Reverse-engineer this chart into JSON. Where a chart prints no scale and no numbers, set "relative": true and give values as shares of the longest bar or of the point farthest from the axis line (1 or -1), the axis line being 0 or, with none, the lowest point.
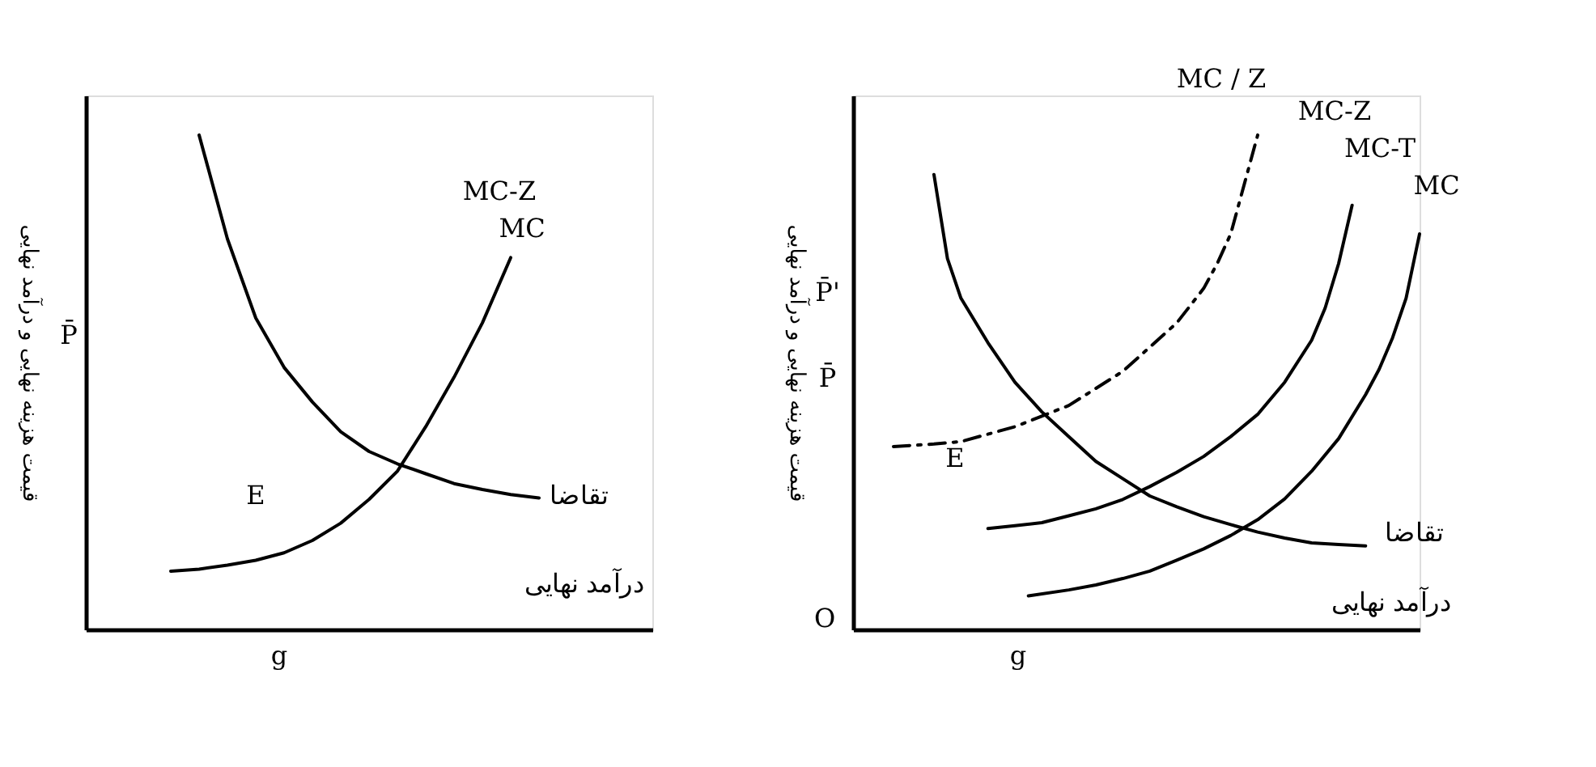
{
  "chart_data": [
    {
      "type": "line",
      "relative": true,
      "ylabel": "قیمت هزینه نهایی و درآمد نهایی",
      "xlabel": "g",
      "line_style": "solid",
      "marker": "none",
      "categories": [
        null,
        null,
        null,
        null,
        null,
        null,
        null,
        null,
        null,
        null,
        null,
        null,
        null,
        null,
        null,
        null,
        null,
        null,
        null,
        null,
        null
      ],
      "series": [
        {
          "color": "#000000",
          "values": [
            null,
            null,
            null,
            null,
            1.0,
            0.79,
            0.63,
            0.53,
            0.46,
            0.4,
            0.36,
            0.335,
            0.315,
            0.295,
            0.283,
            0.273,
            0.266,
            null,
            null,
            null,
            null
          ]
        },
        {
          "color": "#000000",
          "values": [
            null,
            null,
            null,
            0.118,
            0.122,
            0.13,
            0.14,
            0.155,
            0.18,
            0.215,
            0.263,
            0.32,
            0.41,
            0.51,
            0.62,
            0.752,
            null,
            null,
            null,
            null,
            null
          ]
        }
      ],
      "annotations": [
        "MC-Z",
        "MC",
        "E",
        "تقاضا",
        "درآمد نهایی",
        "P̄"
      ]
    },
    {
      "type": "line",
      "relative": true,
      "ylabel": "قیمت هزینه نهایی و درآمد نهایی",
      "xlabel": "g",
      "line_style": "solid",
      "marker": "none",
      "categories": [
        null,
        null,
        null,
        null,
        null,
        null,
        null,
        null,
        null,
        null,
        null,
        null,
        null,
        null,
        null,
        null,
        null,
        null,
        null,
        null,
        null,
        null,
        null,
        null,
        null,
        null,
        null,
        null,
        null,
        null,
        null,
        null,
        null,
        null,
        null,
        null,
        null,
        null,
        null,
        null,
        null,
        null,
        null
      ],
      "series": [
        {
          "color": "#000000",
          "values": [
            null,
            null,
            null,
            null,
            null,
            null,
            0.92,
            0.75,
            0.67,
            null,
            0.58,
            null,
            0.5,
            null,
            0.44,
            null,
            0.39,
            null,
            0.34,
            null,
            0.305,
            null,
            0.27,
            null,
            0.248,
            null,
            0.228,
            null,
            0.212,
            null,
            0.197,
            null,
            0.185,
            null,
            0.175,
            null,
            0.172,
            null,
            0.169,
            null,
            null,
            null,
            null
          ]
        },
        {
          "color": "#000000",
          "values": [
            null,
            null,
            null,
            null,
            null,
            null,
            null,
            null,
            null,
            null,
            0.204,
            null,
            0.21,
            null,
            0.216,
            null,
            0.23,
            null,
            0.244,
            null,
            0.263,
            null,
            0.289,
            null,
            0.318,
            null,
            0.35,
            null,
            0.39,
            null,
            0.435,
            null,
            0.5,
            null,
            0.585,
            0.65,
            0.74,
            0.858,
            null,
            null,
            null,
            null,
            null
          ]
        },
        {
          "color": "#000000",
          "values": [
            null,
            null,
            null,
            null,
            null,
            null,
            null,
            null,
            null,
            null,
            null,
            null,
            null,
            0.068,
            null,
            null,
            0.08,
            null,
            0.09,
            null,
            0.103,
            null,
            0.118,
            null,
            0.14,
            null,
            0.163,
            null,
            0.19,
            null,
            0.222,
            null,
            0.264,
            null,
            0.32,
            null,
            0.386,
            null,
            0.475,
            0.526,
            0.59,
            0.67,
            0.8
          ]
        },
        {
          "color": "#000000",
          "line_style": "dashed",
          "values": [
            null,
            null,
            null,
            0.37,
            null,
            null,
            0.375,
            null,
            0.38,
            null,
            null,
            null,
            0.41,
            null,
            null,
            null,
            0.453,
            null,
            null,
            null,
            0.522,
            null,
            null,
            null,
            0.62,
            null,
            0.69,
            0.74,
            0.8,
            0.9,
            1.0,
            null,
            null,
            null,
            null,
            null,
            null,
            null,
            null,
            null,
            null,
            null,
            null
          ]
        }
      ],
      "annotations": [
        "MC  / Z",
        "MC-Z",
        "MC-T",
        "MC",
        "E",
        "تقاضا",
        "درآمد نهایی",
        "P̄'",
        "P̄",
        "O"
      ]
    }
  ]
}
